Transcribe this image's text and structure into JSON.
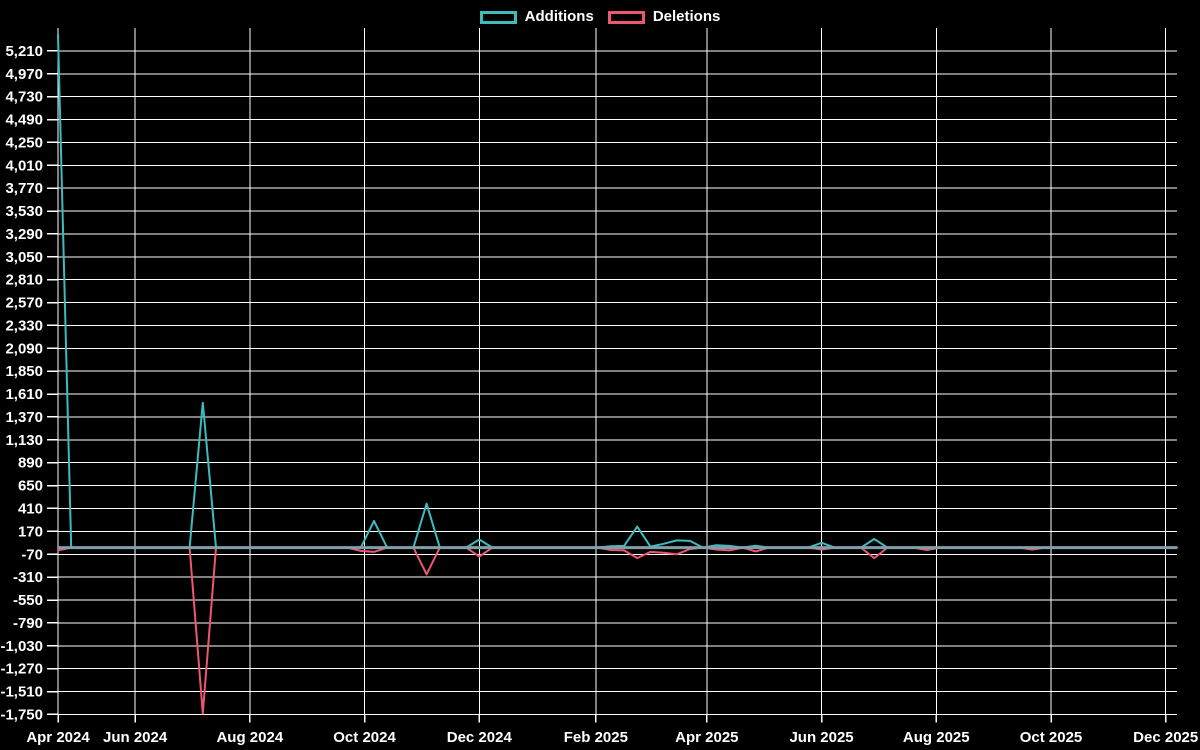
{
  "legend": {
    "items": [
      {
        "label": "Additions",
        "color": "#3dbcbe"
      },
      {
        "label": "Deletions",
        "color": "#ef5670"
      }
    ]
  },
  "colors": {
    "background": "#000000",
    "grid": "#ffffff",
    "axis_text": "#ffffff",
    "additions_line": "#3dbcbe",
    "deletions_line": "#ef5670",
    "zero_baseline": "#7ea0ad"
  },
  "chart_data": {
    "type": "line",
    "title": "",
    "xlabel": "",
    "ylabel": "",
    "x_unit": "week-index",
    "n_points": 86,
    "xlim": [
      0,
      85
    ],
    "ylim": [
      -1840,
      5450
    ],
    "grid": true,
    "legend_position": "top-center",
    "y_tick_step": 240,
    "y_ticks": [
      5210,
      4970,
      4730,
      4490,
      4250,
      4010,
      3770,
      3530,
      3290,
      3050,
      2810,
      2570,
      2330,
      2090,
      1850,
      1610,
      1370,
      1130,
      890,
      650,
      410,
      170,
      -70,
      -310,
      -550,
      -790,
      -1030,
      -1270,
      -1510,
      -1750
    ],
    "y_tick_labels": [
      "5,210",
      "4,970",
      "4,730",
      "4,490",
      "4,250",
      "4,010",
      "3,770",
      "3,530",
      "3,290",
      "3,050",
      "2,810",
      "2,570",
      "2,330",
      "2,090",
      "1,850",
      "1,610",
      "1,370",
      "1,130",
      "890",
      "650",
      "410",
      "170",
      "-70",
      "-310",
      "-550",
      "-790",
      "-1,030",
      "-1,270",
      "-1,510",
      "-1,750"
    ],
    "x_tick_labels": [
      "Apr 2024",
      "Jun 2024",
      "Aug 2024",
      "Oct 2024",
      "Dec 2024",
      "Feb 2025",
      "Apr 2025",
      "Jun 2025",
      "Aug 2025",
      "Oct 2025",
      "Dec 2025"
    ],
    "x_tick_positions_weeks": [
      0,
      5.857,
      14.571,
      23.286,
      32.0,
      40.857,
      49.286,
      58.0,
      66.714,
      75.429,
      84.143
    ],
    "series": [
      {
        "name": "Additions",
        "color": "#3dbcbe",
        "values": [
          5380,
          0,
          0,
          0,
          0,
          0,
          0,
          0,
          0,
          0,
          0,
          1520,
          0,
          0,
          0,
          0,
          0,
          0,
          0,
          0,
          0,
          0,
          0,
          0,
          280,
          0,
          0,
          0,
          460,
          0,
          0,
          0,
          85,
          0,
          0,
          0,
          0,
          0,
          0,
          0,
          0,
          0,
          15,
          18,
          220,
          10,
          40,
          75,
          70,
          0,
          25,
          18,
          0,
          20,
          0,
          0,
          0,
          0,
          50,
          0,
          0,
          0,
          90,
          0,
          0,
          0,
          0,
          0,
          0,
          0,
          0,
          0,
          0,
          0,
          0,
          0,
          0,
          0,
          0,
          0,
          0,
          0,
          0,
          0,
          0,
          0
        ]
      },
      {
        "name": "Deletions",
        "color": "#ef5670",
        "values": [
          -30,
          0,
          0,
          0,
          0,
          0,
          0,
          0,
          0,
          0,
          0,
          -1740,
          0,
          0,
          0,
          0,
          0,
          0,
          0,
          0,
          0,
          0,
          0,
          -35,
          -45,
          0,
          0,
          0,
          -280,
          0,
          0,
          0,
          -95,
          0,
          0,
          0,
          0,
          0,
          0,
          0,
          0,
          0,
          -25,
          -30,
          -110,
          -45,
          -55,
          -70,
          -15,
          0,
          -20,
          -30,
          0,
          -40,
          0,
          0,
          0,
          0,
          -20,
          0,
          0,
          0,
          -110,
          0,
          0,
          0,
          -25,
          0,
          0,
          0,
          0,
          0,
          0,
          0,
          -20,
          0,
          0,
          0,
          0,
          0,
          0,
          0,
          0,
          0,
          0,
          0
        ]
      }
    ]
  }
}
